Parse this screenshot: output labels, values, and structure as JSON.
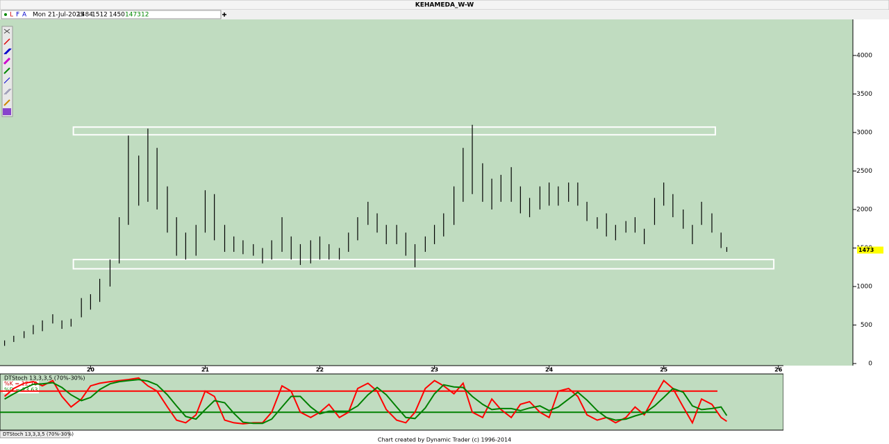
{
  "window_title": "KEHAMEDA_W-W",
  "toolbar": {
    "icons": [
      "L",
      "F",
      "A"
    ],
    "date": "Mon 21-Jul-2025",
    "open": 1484,
    "high": 1512,
    "low": 1450,
    "close": 1473,
    "bars": 12
  },
  "footer": "Chart created by Dynamic Trader  (c)  1996-2014",
  "tab": "DTStoch 13,3,3,5 (70%-30%)",
  "chart_data": [
    {
      "type": "hlbar",
      "color": "#000000",
      "x": [
        19.25,
        19.33,
        19.42,
        19.5,
        19.58,
        19.67,
        19.75,
        19.83,
        19.92,
        20,
        20.08,
        20.17,
        20.25,
        20.33,
        20.42,
        20.5,
        20.58,
        20.67,
        20.75,
        20.83,
        20.92,
        21,
        21.08,
        21.17,
        21.25,
        21.33,
        21.42,
        21.5,
        21.58,
        21.67,
        21.75,
        21.83,
        21.92,
        22,
        22.08,
        22.17,
        22.25,
        22.33,
        22.42,
        22.5,
        22.58,
        22.67,
        22.75,
        22.83,
        22.92,
        23,
        23.08,
        23.17,
        23.25,
        23.33,
        23.42,
        23.5,
        23.58,
        23.67,
        23.75,
        23.83,
        23.92,
        24,
        24.08,
        24.17,
        24.25,
        24.33,
        24.42,
        24.5,
        24.58,
        24.67,
        24.75,
        24.83,
        24.92,
        25,
        25.08,
        25.17,
        25.25,
        25.33,
        25.42,
        25.5,
        25.55
      ],
      "series": [
        {
          "name": "High",
          "values": [
            300,
            360,
            420,
            500,
            560,
            640,
            560,
            580,
            850,
            900,
            1100,
            1350,
            1900,
            2960,
            2700,
            3050,
            2800,
            2300,
            1900,
            1700,
            1800,
            2250,
            2200,
            1800,
            1650,
            1600,
            1550,
            1500,
            1600,
            1900,
            1650,
            1550,
            1600,
            1650,
            1550,
            1500,
            1700,
            1900,
            2100,
            1950,
            1800,
            1800,
            1700,
            1550,
            1650,
            1800,
            1950,
            2300,
            2800,
            3100,
            2600,
            2400,
            2450,
            2550,
            2300,
            2150,
            2300,
            2350,
            2300,
            2350,
            2350,
            2100,
            1900,
            1950,
            1800,
            1850,
            1900,
            1750,
            2150,
            2350,
            2200,
            2000,
            1800,
            2100,
            1950,
            1700,
            1512
          ]
        },
        {
          "name": "Low",
          "values": [
            230,
            280,
            330,
            380,
            420,
            520,
            450,
            480,
            600,
            700,
            800,
            1000,
            1300,
            1800,
            2050,
            2100,
            2000,
            1700,
            1400,
            1350,
            1400,
            1700,
            1600,
            1450,
            1450,
            1420,
            1400,
            1300,
            1350,
            1450,
            1350,
            1280,
            1300,
            1350,
            1350,
            1350,
            1450,
            1600,
            1800,
            1700,
            1550,
            1550,
            1400,
            1250,
            1450,
            1550,
            1650,
            1800,
            2100,
            2200,
            2100,
            2000,
            2100,
            2100,
            1950,
            1900,
            2000,
            2050,
            2050,
            2100,
            2050,
            1850,
            1750,
            1650,
            1600,
            1700,
            1700,
            1550,
            1800,
            2050,
            1900,
            1750,
            1550,
            1800,
            1700,
            1500,
            1450
          ]
        }
      ],
      "zones": [
        {
          "x0": 19.85,
          "x1": 25.45,
          "y0": 2970,
          "y1": 3070
        },
        {
          "x0": 19.85,
          "x1": 25.96,
          "y0": 1230,
          "y1": 1350
        }
      ],
      "last_price": 1473,
      "xlim": [
        19.21,
        26.65
      ],
      "xticks": [
        20,
        21,
        22,
        23,
        24,
        25,
        26
      ],
      "xtick_labels": [
        "20",
        "21",
        "22",
        "23",
        "24",
        "25",
        "26"
      ],
      "ylim": [
        -27,
        4468
      ],
      "yticks": [
        0,
        500,
        1000,
        1500,
        2000,
        2500,
        3000,
        3500,
        4000
      ]
    },
    {
      "type": "line",
      "title": "DTStoch 13,3,3,5 (70%-30%)",
      "k_label": "%K = 12.70",
      "d_label": "%D = 23.63",
      "x": [
        19.25,
        19.33,
        19.42,
        19.5,
        19.58,
        19.67,
        19.75,
        19.83,
        19.92,
        20,
        20.08,
        20.17,
        20.25,
        20.33,
        20.42,
        20.5,
        20.58,
        20.67,
        20.75,
        20.83,
        20.92,
        21,
        21.08,
        21.17,
        21.25,
        21.33,
        21.42,
        21.5,
        21.58,
        21.67,
        21.75,
        21.83,
        21.92,
        22,
        22.08,
        22.17,
        22.25,
        22.33,
        22.42,
        22.5,
        22.58,
        22.67,
        22.75,
        22.83,
        22.92,
        23,
        23.08,
        23.17,
        23.25,
        23.33,
        23.42,
        23.5,
        23.58,
        23.67,
        23.75,
        23.83,
        23.92,
        24,
        24.08,
        24.17,
        24.25,
        24.33,
        24.42,
        24.5,
        24.58,
        24.67,
        24.75,
        24.83,
        24.92,
        25,
        25.08,
        25.17,
        25.25,
        25.33,
        25.42,
        25.5,
        25.55
      ],
      "series": [
        {
          "name": "%K",
          "color": "#ff0000",
          "values": [
            60,
            75,
            85,
            88,
            80,
            90,
            60,
            40,
            55,
            80,
            85,
            88,
            90,
            92,
            95,
            80,
            70,
            40,
            15,
            10,
            25,
            70,
            60,
            15,
            10,
            8,
            10,
            10,
            30,
            80,
            70,
            30,
            20,
            30,
            45,
            20,
            30,
            75,
            85,
            70,
            35,
            15,
            10,
            30,
            75,
            90,
            80,
            65,
            85,
            30,
            20,
            55,
            35,
            20,
            45,
            50,
            30,
            20,
            70,
            75,
            60,
            25,
            15,
            20,
            10,
            20,
            40,
            25,
            60,
            90,
            75,
            40,
            10,
            55,
            45,
            20,
            12.7
          ]
        },
        {
          "name": "%D",
          "color": "#008000",
          "values": [
            55,
            65,
            75,
            83,
            84,
            86,
            77,
            63,
            52,
            58,
            73,
            84,
            88,
            90,
            92,
            89,
            82,
            63,
            42,
            22,
            17,
            35,
            52,
            48,
            28,
            11,
            9,
            9,
            17,
            40,
            60,
            60,
            40,
            27,
            32,
            32,
            32,
            42,
            63,
            77,
            63,
            40,
            20,
            18,
            38,
            65,
            82,
            78,
            77,
            60,
            45,
            35,
            37,
            37,
            33,
            38,
            42,
            33,
            40,
            55,
            68,
            53,
            33,
            20,
            15,
            17,
            23,
            28,
            42,
            58,
            75,
            68,
            42,
            35,
            37,
            40,
            23.63
          ]
        }
      ],
      "levels": [
        {
          "value": 70,
          "color": "#ff0000"
        },
        {
          "value": 30,
          "color": "#008000"
        }
      ],
      "xlim": [
        19.21,
        26.65
      ],
      "ylim": [
        0,
        100
      ]
    }
  ]
}
